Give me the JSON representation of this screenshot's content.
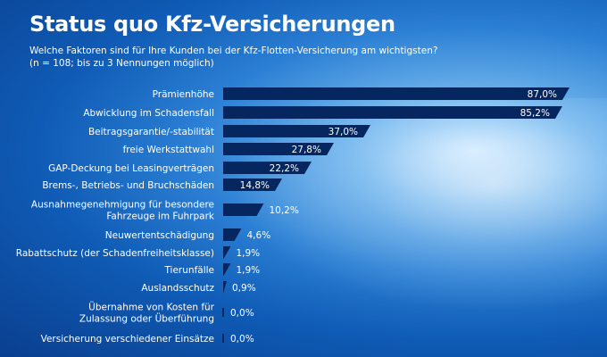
{
  "header": {
    "title": "Status quo Kfz-Versicherungen",
    "subtitle_line1": "Welche Faktoren sind für Ihre Kunden bei der Kfz-Flotten-Versicherung am wichtigsten?",
    "subtitle_line2": "(n = 108; bis zu 3 Nennungen möglich)"
  },
  "colors": {
    "bar": "#06265f",
    "text": "#ffffff"
  },
  "chart_data": {
    "type": "bar",
    "orientation": "horizontal",
    "categories": [
      [
        "Prämienhöhe"
      ],
      [
        "Abwicklung im Schadensfall"
      ],
      [
        "Beitragsgarantie/-stabilität"
      ],
      [
        "freie Werkstattwahl"
      ],
      [
        "GAP-Deckung bei Leasingverträgen"
      ],
      [
        "Brems-, Betriebs- und Bruchschäden"
      ],
      [
        "Ausnahmegenehmigung für besondere",
        "Fahrzeuge im Fuhrpark"
      ],
      [
        "Neuwertentschädigung"
      ],
      [
        "Rabattschutz (der Schadenfreiheitsklasse)"
      ],
      [
        "Tierunfälle"
      ],
      [
        "Auslandsschutz"
      ],
      [
        "Übernahme von Kosten für",
        "Zulassung oder Überführung"
      ],
      [
        "Versicherung verschiedener Einsätze"
      ]
    ],
    "values": [
      87.0,
      85.2,
      37.0,
      27.8,
      22.2,
      14.8,
      10.2,
      4.6,
      1.9,
      1.9,
      0.9,
      0.0,
      0.0
    ],
    "value_labels": [
      "87,0%",
      "85,2%",
      "37,0%",
      "27,8%",
      "22,2%",
      "14,8%",
      "10,2%",
      "4,6%",
      "1,9%",
      "1,9%",
      "0,9%",
      "0,0%",
      "0,0%"
    ],
    "unit": "%",
    "xlim": [
      0,
      87
    ],
    "grid": false,
    "legend": "none"
  }
}
